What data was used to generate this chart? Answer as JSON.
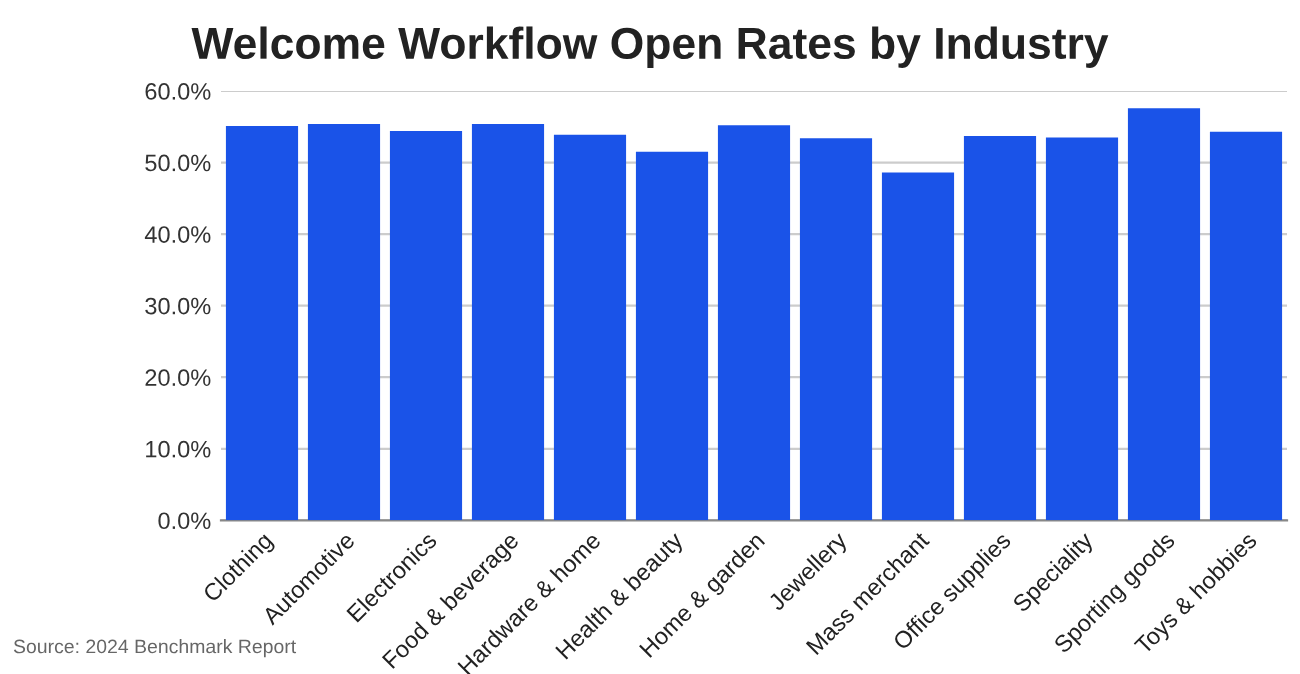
{
  "chart_data": {
    "type": "bar",
    "title": "Welcome Workflow Open Rates by Industry",
    "categories": [
      "Clothing",
      "Automotive",
      "Electronics",
      "Food & beverage",
      "Hardware & home",
      "Health & beauty",
      "Home & garden",
      "Jewellery",
      "Mass merchant",
      "Office supplies",
      "Speciality",
      "Sporting goods",
      "Toys & hobbies"
    ],
    "values": [
      55.1,
      55.4,
      54.4,
      55.4,
      53.9,
      51.5,
      55.2,
      53.4,
      48.6,
      53.7,
      53.5,
      57.6,
      54.3
    ],
    "color": "#1a53e8",
    "ylim": [
      0,
      60
    ],
    "yticks": [
      {
        "value": 0,
        "label": "0.0%"
      },
      {
        "value": 10,
        "label": "10.0%"
      },
      {
        "value": 20,
        "label": "20.0%"
      },
      {
        "value": 30,
        "label": "30.0%"
      },
      {
        "value": 40,
        "label": "40.0%"
      },
      {
        "value": 50,
        "label": "50.0%"
      },
      {
        "value": 60,
        "label": "60.0%"
      }
    ],
    "grid": "y",
    "annotations": [
      "Source: 2024 Benchmark Report"
    ]
  }
}
